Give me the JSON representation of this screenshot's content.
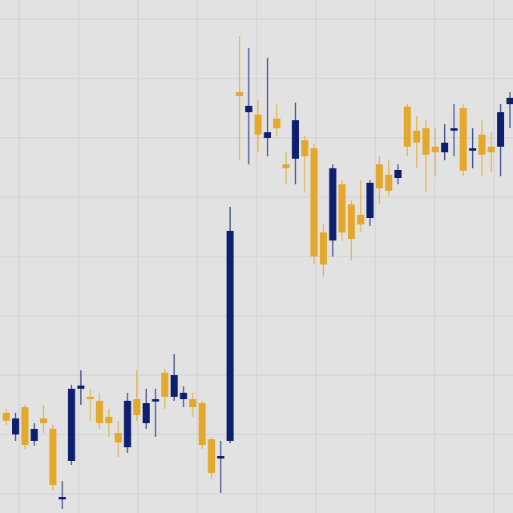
{
  "chart_data": {
    "type": "candlestick",
    "up_color": "#0d1f6e",
    "down_color": "#e3a82c",
    "ylim": [
      0,
      640
    ],
    "open": [
      125,
      98,
      132,
      90,
      118,
      105,
      18,
      65,
      155,
      145,
      140,
      120,
      100,
      82,
      142,
      112,
      140,
      175,
      145,
      142,
      142,
      137,
      92,
      68,
      90,
      525,
      500,
      497,
      468,
      492,
      435,
      442,
      465,
      455,
      350,
      340,
      410,
      385,
      372,
      368,
      435,
      422,
      418,
      507,
      477,
      480,
      457,
      450,
      477,
      505,
      452,
      472,
      457,
      457,
      510
    ],
    "high": [
      130,
      125,
      135,
      112,
      135,
      110,
      40,
      160,
      178,
      155,
      150,
      130,
      115,
      150,
      178,
      155,
      155,
      180,
      198,
      158,
      150,
      140,
      95,
      90,
      382,
      595,
      580,
      515,
      568,
      510,
      450,
      512,
      470,
      460,
      360,
      435,
      415,
      390,
      415,
      415,
      445,
      440,
      435,
      510,
      495,
      490,
      480,
      485,
      510,
      510,
      480,
      490,
      475,
      510,
      525
    ],
    "low": [
      110,
      90,
      80,
      84,
      100,
      28,
      5,
      60,
      135,
      115,
      105,
      95,
      70,
      75,
      115,
      105,
      95,
      130,
      140,
      132,
      120,
      80,
      42,
      25,
      87,
      440,
      435,
      450,
      445,
      470,
      410,
      410,
      400,
      310,
      295,
      320,
      340,
      315,
      350,
      358,
      385,
      395,
      410,
      445,
      430,
      400,
      420,
      440,
      445,
      420,
      430,
      420,
      425,
      420,
      480
    ],
    "close": [
      115,
      118,
      85,
      105,
      112,
      35,
      20,
      155,
      159,
      142,
      112,
      112,
      88,
      140,
      122,
      137,
      142,
      145,
      172,
      150,
      132,
      85,
      50,
      71,
      352,
      520,
      508,
      472,
      475,
      480,
      430,
      490,
      445,
      320,
      310,
      430,
      350,
      342,
      360,
      412,
      405,
      402,
      428,
      457,
      462,
      447,
      450,
      462,
      480,
      427,
      455,
      447,
      450,
      500,
      518
    ]
  }
}
